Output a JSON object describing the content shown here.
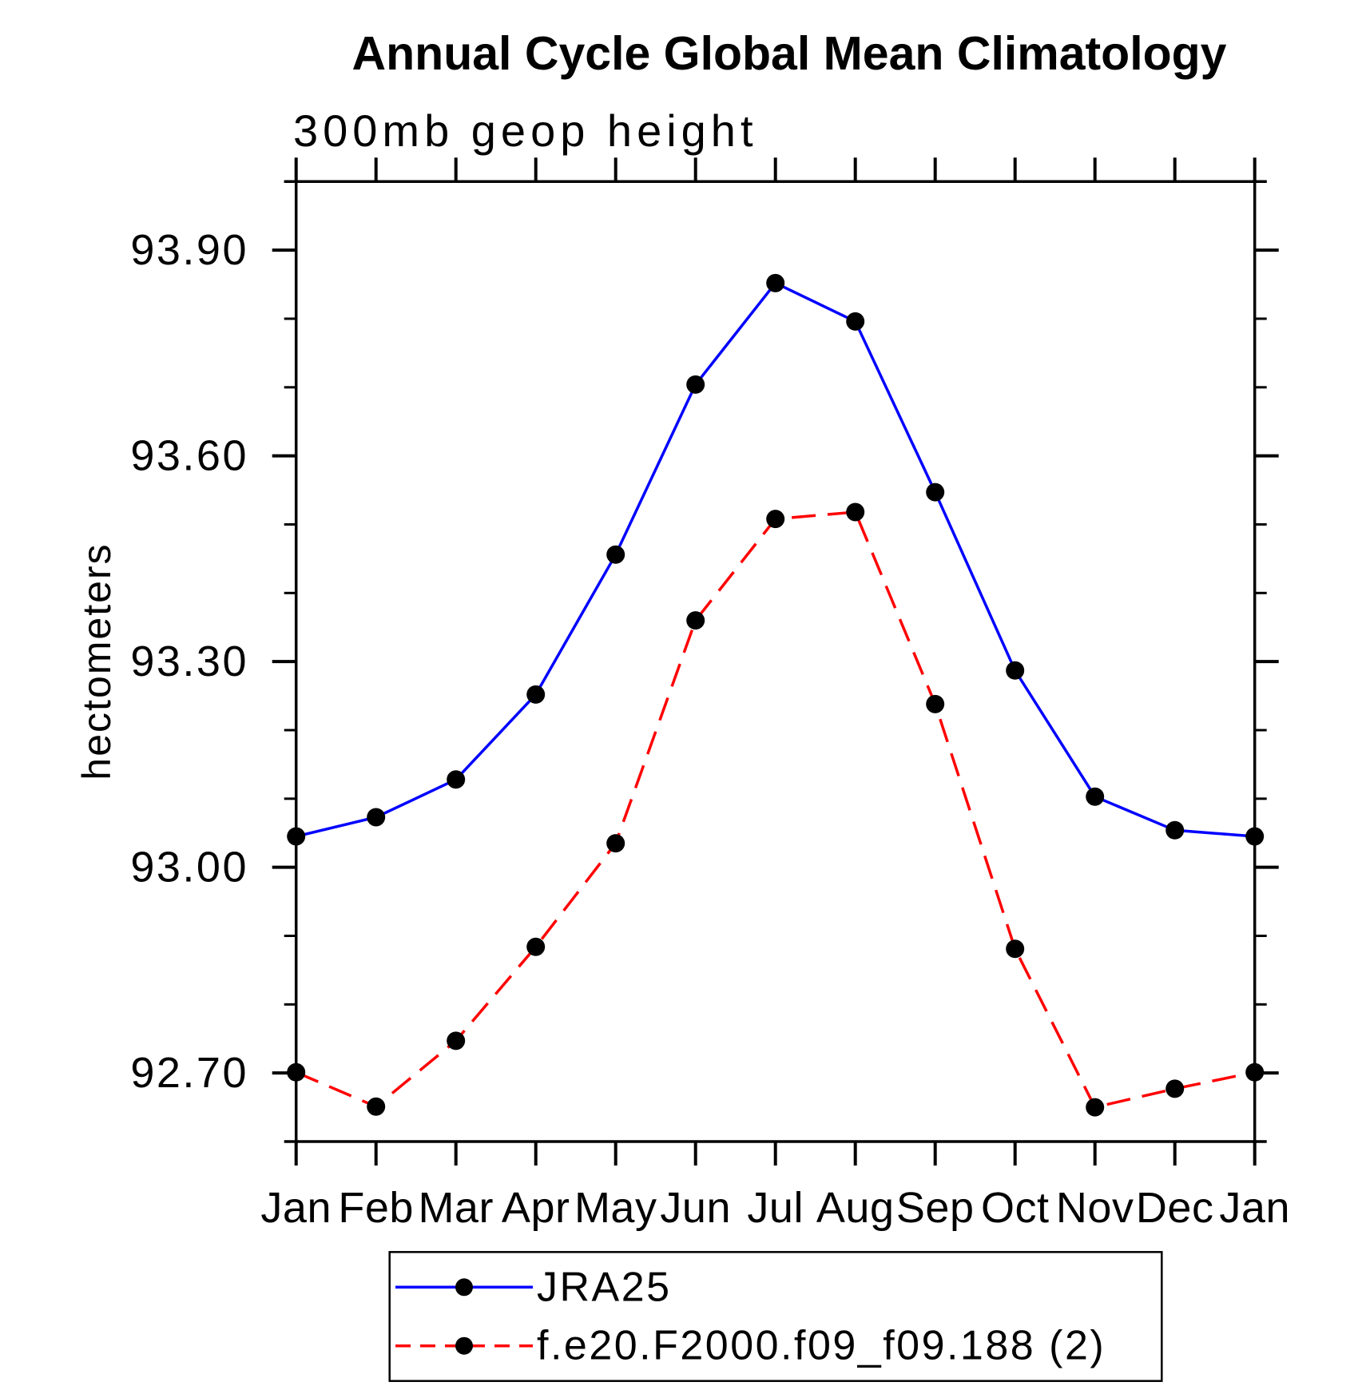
{
  "title": "Annual Cycle Global Mean Climatology",
  "subtitle": "300mb geop height",
  "chart_data": {
    "type": "line",
    "title": "Annual Cycle Global Mean Climatology",
    "subtitle": "300mb geop height",
    "xlabel": "",
    "ylabel": "hectometers",
    "x_categories": [
      "Jan",
      "Feb",
      "Mar",
      "Apr",
      "May",
      "Jun",
      "Jul",
      "Aug",
      "Sep",
      "Oct",
      "Nov",
      "Dec",
      "Jan"
    ],
    "ylim": [
      92.6,
      94.0
    ],
    "y_major_ticks": [
      93.9,
      93.6,
      93.3,
      93.0,
      92.7
    ],
    "y_tick_labels": [
      "93.90",
      "93.60",
      "93.30",
      "93.00",
      "92.70"
    ],
    "y_minor_step": 0.1,
    "grid": false,
    "legend_position": "bottom",
    "marker_color": "#000000",
    "axis_color": "#000000",
    "series": [
      {
        "name": "JRA25",
        "color": "#0000ff",
        "style": "solid",
        "marker": "filled-circle",
        "values": [
          93.045,
          93.073,
          93.128,
          93.252,
          93.456,
          93.704,
          93.852,
          93.796,
          93.547,
          93.287,
          93.103,
          93.054,
          93.045
        ]
      },
      {
        "name": "f.e20.F2000.f09_f09.188 (2)",
        "color": "#ff0000",
        "style": "dashed",
        "marker": "filled-circle",
        "values": [
          92.701,
          92.651,
          92.747,
          92.884,
          93.035,
          93.36,
          93.508,
          93.518,
          93.238,
          92.881,
          92.65,
          92.677,
          92.701
        ]
      }
    ]
  }
}
